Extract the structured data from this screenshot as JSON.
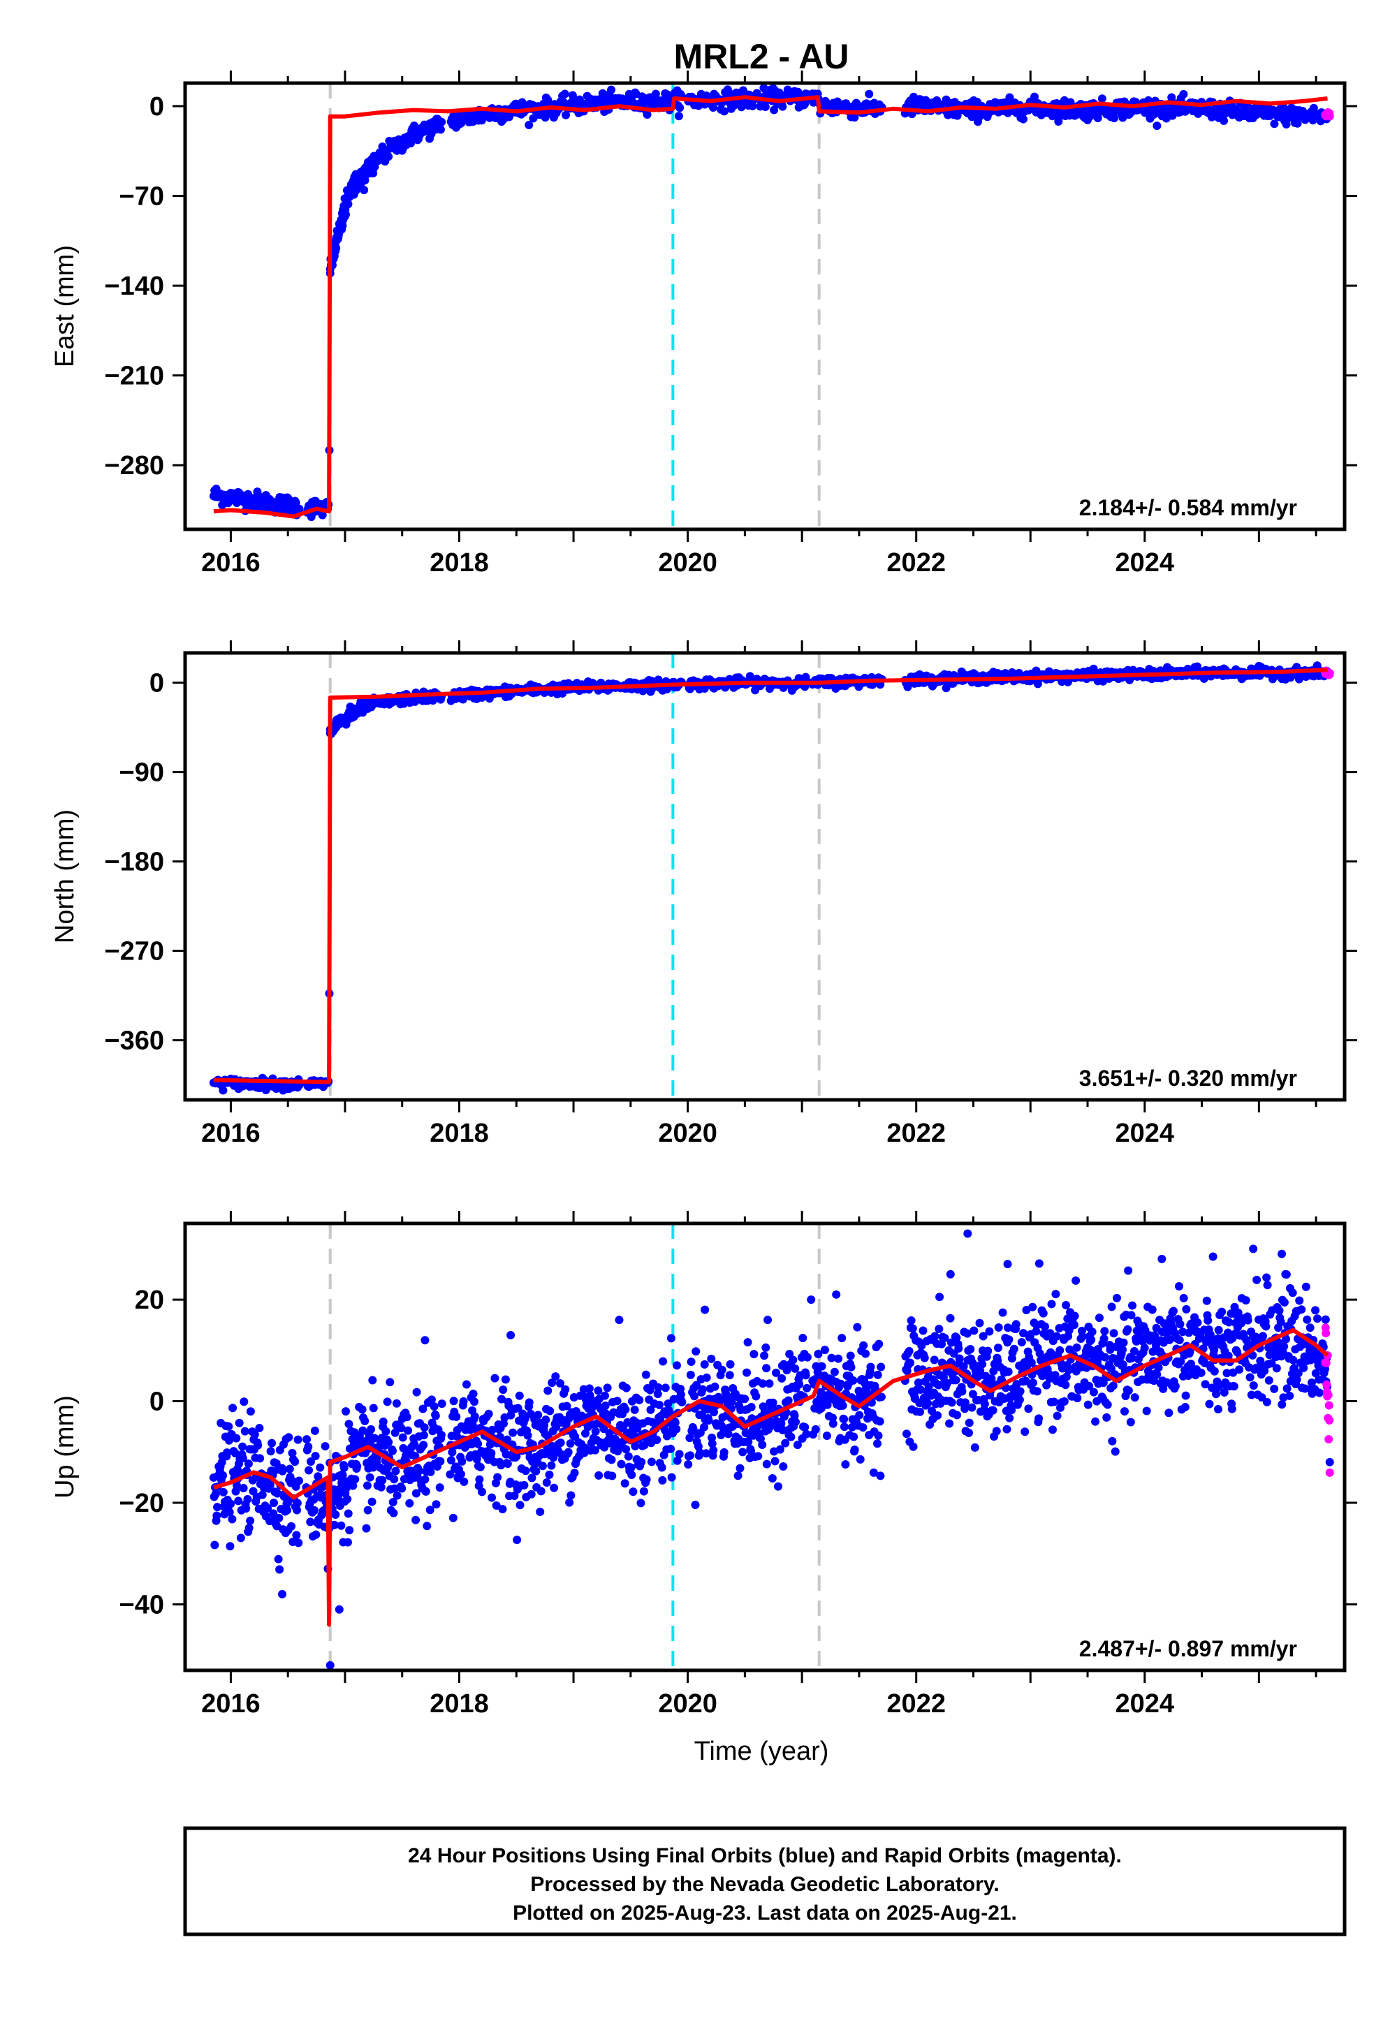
{
  "title": "MRL2 - AU",
  "xlabel": "Time (year)",
  "footer": {
    "line1": "24 Hour Positions Using Final Orbits (blue) and Rapid Orbits (magenta).",
    "line2": "Processed by the Nevada Geodetic Laboratory.",
    "line3": "Plotted on 2025-Aug-23. Last data on 2025-Aug-21."
  },
  "colors": {
    "final": "#0000ff",
    "rapid": "#ff00ff",
    "model": "#ff0000",
    "equipment_change": "#c8c8c8",
    "earthquake": "#00e5ee"
  },
  "chart_data": [
    {
      "type": "scatter",
      "panel": "East",
      "ylabel": "East (mm)",
      "rate_label": "2.184+/- 0.584 mm/yr",
      "xlim": [
        2015.6,
        2025.75
      ],
      "ylim": [
        -330,
        18
      ],
      "x_ticks": [
        2016,
        2018,
        2020,
        2022,
        2024
      ],
      "y_ticks": [
        0,
        -70,
        -140,
        -210,
        -280
      ],
      "grid": false,
      "vertical_lines": [
        {
          "x": 2016.87,
          "kind": "equipment_change"
        },
        {
          "x": 2019.87,
          "kind": "earthquake"
        },
        {
          "x": 2021.15,
          "kind": "equipment_change"
        }
      ],
      "final_trend": [
        [
          2015.85,
          -303
        ],
        [
          2016.1,
          -306
        ],
        [
          2016.4,
          -310
        ],
        [
          2016.7,
          -313
        ],
        [
          2016.86,
          -314
        ],
        [
          2016.87,
          -128
        ],
        [
          2016.95,
          -95
        ],
        [
          2017.05,
          -65
        ],
        [
          2017.3,
          -40
        ],
        [
          2017.6,
          -22
        ],
        [
          2017.9,
          -12
        ],
        [
          2018.3,
          -5
        ],
        [
          2018.8,
          -1
        ],
        [
          2019.3,
          3
        ],
        [
          2019.87,
          4
        ],
        [
          2020.2,
          5
        ],
        [
          2020.7,
          6
        ],
        [
          2021.14,
          6
        ],
        [
          2021.15,
          0
        ],
        [
          2021.6,
          -2
        ],
        [
          2022.0,
          0
        ],
        [
          2022.5,
          -3
        ],
        [
          2023.0,
          -1
        ],
        [
          2023.5,
          -3
        ],
        [
          2024.0,
          -1
        ],
        [
          2024.5,
          -2
        ],
        [
          2025.0,
          -6
        ],
        [
          2025.6,
          -8
        ]
      ],
      "final_scatter": 3.5,
      "rapid_segment": [
        [
          2025.58,
          -8
        ],
        [
          2025.62,
          -6
        ]
      ],
      "model": [
        [
          2015.85,
          -316
        ],
        [
          2016.0,
          -315
        ],
        [
          2016.3,
          -317
        ],
        [
          2016.55,
          -320
        ],
        [
          2016.75,
          -314
        ],
        [
          2016.86,
          -316
        ],
        [
          2016.87,
          -8
        ],
        [
          2017.0,
          -8
        ],
        [
          2017.3,
          -5
        ],
        [
          2017.6,
          -3
        ],
        [
          2017.9,
          -4
        ],
        [
          2018.2,
          -2
        ],
        [
          2018.5,
          -4
        ],
        [
          2018.8,
          -1
        ],
        [
          2019.1,
          -3
        ],
        [
          2019.4,
          0
        ],
        [
          2019.7,
          -3
        ],
        [
          2019.87,
          -2
        ],
        [
          2019.88,
          6
        ],
        [
          2020.2,
          4
        ],
        [
          2020.5,
          7
        ],
        [
          2020.8,
          4
        ],
        [
          2021.14,
          7
        ],
        [
          2021.15,
          -4
        ],
        [
          2021.5,
          -5
        ],
        [
          2021.8,
          -2
        ],
        [
          2022.1,
          -4
        ],
        [
          2022.4,
          -1
        ],
        [
          2022.7,
          -2
        ],
        [
          2023.0,
          1
        ],
        [
          2023.3,
          -1
        ],
        [
          2023.6,
          2
        ],
        [
          2023.9,
          0
        ],
        [
          2024.2,
          3
        ],
        [
          2024.5,
          1
        ],
        [
          2024.8,
          4
        ],
        [
          2025.1,
          2
        ],
        [
          2025.4,
          4
        ],
        [
          2025.6,
          6
        ]
      ]
    },
    {
      "type": "scatter",
      "panel": "North",
      "ylabel": "North (mm)",
      "rate_label": "3.651+/- 0.320 mm/yr",
      "xlim": [
        2015.6,
        2025.75
      ],
      "ylim": [
        -420,
        30
      ],
      "x_ticks": [
        2016,
        2018,
        2020,
        2022,
        2024
      ],
      "y_ticks": [
        0,
        -90,
        -180,
        -270,
        -360
      ],
      "grid": false,
      "vertical_lines": [
        {
          "x": 2016.87,
          "kind": "equipment_change"
        },
        {
          "x": 2019.87,
          "kind": "earthquake"
        },
        {
          "x": 2021.15,
          "kind": "equipment_change"
        }
      ],
      "final_trend": [
        [
          2015.85,
          -403
        ],
        [
          2016.3,
          -404
        ],
        [
          2016.86,
          -404
        ],
        [
          2016.87,
          -50
        ],
        [
          2016.95,
          -40
        ],
        [
          2017.2,
          -22
        ],
        [
          2017.6,
          -15
        ],
        [
          2018.0,
          -13
        ],
        [
          2018.5,
          -8
        ],
        [
          2019.0,
          -5
        ],
        [
          2019.5,
          -3
        ],
        [
          2019.87,
          -2
        ],
        [
          2020.5,
          0
        ],
        [
          2021.15,
          0
        ],
        [
          2021.6,
          2
        ],
        [
          2022.0,
          3
        ],
        [
          2022.5,
          5
        ],
        [
          2023.0,
          6
        ],
        [
          2023.5,
          7
        ],
        [
          2024.0,
          8
        ],
        [
          2024.5,
          10
        ],
        [
          2025.0,
          10
        ],
        [
          2025.6,
          10
        ]
      ],
      "final_scatter": 2.5,
      "rapid_segment": [
        [
          2025.58,
          10
        ],
        [
          2025.62,
          9
        ]
      ],
      "model": [
        [
          2015.85,
          -400
        ],
        [
          2016.3,
          -401
        ],
        [
          2016.86,
          -402
        ],
        [
          2016.87,
          -15
        ],
        [
          2017.3,
          -14
        ],
        [
          2017.7,
          -12
        ],
        [
          2018.2,
          -10
        ],
        [
          2018.7,
          -6
        ],
        [
          2019.2,
          -5
        ],
        [
          2019.87,
          -2
        ],
        [
          2020.5,
          0
        ],
        [
          2021.15,
          0
        ],
        [
          2021.6,
          2
        ],
        [
          2022.2,
          3
        ],
        [
          2022.8,
          4
        ],
        [
          2023.4,
          6
        ],
        [
          2024.0,
          8
        ],
        [
          2024.6,
          10
        ],
        [
          2025.2,
          11
        ],
        [
          2025.6,
          13
        ]
      ]
    },
    {
      "type": "scatter",
      "panel": "Up",
      "ylabel": "Up (mm)",
      "rate_label": "2.487+/- 0.897 mm/yr",
      "xlim": [
        2015.6,
        2025.75
      ],
      "ylim": [
        -53,
        35
      ],
      "x_ticks": [
        2016,
        2018,
        2020,
        2022,
        2024
      ],
      "y_ticks": [
        20,
        0,
        -20,
        -40
      ],
      "grid": false,
      "vertical_lines": [
        {
          "x": 2016.87,
          "kind": "equipment_change"
        },
        {
          "x": 2019.87,
          "kind": "earthquake"
        },
        {
          "x": 2021.15,
          "kind": "equipment_change"
        }
      ],
      "final_trend": [
        [
          2015.85,
          -16
        ],
        [
          2016.2,
          -14
        ],
        [
          2016.55,
          -18
        ],
        [
          2016.86,
          -17
        ],
        [
          2016.87,
          -22
        ],
        [
          2017.0,
          -14
        ],
        [
          2017.3,
          -11
        ],
        [
          2017.6,
          -13
        ],
        [
          2017.9,
          -9
        ],
        [
          2018.3,
          -7
        ],
        [
          2018.6,
          -10
        ],
        [
          2018.9,
          -6
        ],
        [
          2019.2,
          -4
        ],
        [
          2019.5,
          -7
        ],
        [
          2019.87,
          -3
        ],
        [
          2020.2,
          -1
        ],
        [
          2020.6,
          -4
        ],
        [
          2021.15,
          2
        ],
        [
          2021.5,
          0
        ],
        [
          2021.9,
          4
        ],
        [
          2022.3,
          6
        ],
        [
          2022.7,
          3
        ],
        [
          2023.0,
          7
        ],
        [
          2023.3,
          9
        ],
        [
          2023.7,
          6
        ],
        [
          2024.0,
          9
        ],
        [
          2024.3,
          11
        ],
        [
          2024.7,
          8
        ],
        [
          2025.0,
          11
        ],
        [
          2025.3,
          12
        ],
        [
          2025.6,
          8
        ]
      ],
      "final_scatter": 5.5,
      "rapid_segment": [
        [
          2025.58,
          10
        ],
        [
          2025.62,
          -8
        ]
      ],
      "model": [
        [
          2015.85,
          -17
        ],
        [
          2016.0,
          -16
        ],
        [
          2016.2,
          -14
        ],
        [
          2016.35,
          -15
        ],
        [
          2016.55,
          -19
        ],
        [
          2016.7,
          -17
        ],
        [
          2016.85,
          -15
        ],
        [
          2016.86,
          -44
        ],
        [
          2016.87,
          -12
        ],
        [
          2017.0,
          -11
        ],
        [
          2017.2,
          -9
        ],
        [
          2017.5,
          -13
        ],
        [
          2017.7,
          -11
        ],
        [
          2018.0,
          -8
        ],
        [
          2018.2,
          -6
        ],
        [
          2018.5,
          -10
        ],
        [
          2018.7,
          -9
        ],
        [
          2019.0,
          -5
        ],
        [
          2019.2,
          -3
        ],
        [
          2019.5,
          -8
        ],
        [
          2019.7,
          -6
        ],
        [
          2019.87,
          -3
        ],
        [
          2020.1,
          0
        ],
        [
          2020.3,
          -1
        ],
        [
          2020.5,
          -5
        ],
        [
          2020.8,
          -2
        ],
        [
          2021.1,
          1
        ],
        [
          2021.15,
          4
        ],
        [
          2021.35,
          1
        ],
        [
          2021.5,
          -1
        ],
        [
          2021.8,
          4
        ],
        [
          2022.1,
          6
        ],
        [
          2022.3,
          7
        ],
        [
          2022.5,
          4
        ],
        [
          2022.65,
          2
        ],
        [
          2022.9,
          5
        ],
        [
          2023.1,
          7
        ],
        [
          2023.35,
          9
        ],
        [
          2023.55,
          7
        ],
        [
          2023.75,
          4
        ],
        [
          2024.0,
          7
        ],
        [
          2024.2,
          9
        ],
        [
          2024.4,
          11
        ],
        [
          2024.6,
          8
        ],
        [
          2024.8,
          8
        ],
        [
          2025.0,
          11
        ],
        [
          2025.3,
          14
        ],
        [
          2025.5,
          11
        ],
        [
          2025.6,
          9
        ]
      ],
      "outliers": [
        [
          2016.87,
          -52
        ],
        [
          2016.85,
          -33
        ],
        [
          2016.95,
          -41
        ],
        [
          2016.45,
          -38
        ],
        [
          2022.45,
          33
        ],
        [
          2022.8,
          27
        ],
        [
          2024.95,
          30
        ],
        [
          2025.2,
          29
        ],
        [
          2021.08,
          20
        ],
        [
          2020.15,
          18
        ],
        [
          2021.3,
          21
        ],
        [
          2025.62,
          -12
        ],
        [
          2019.4,
          16
        ],
        [
          2018.45,
          13
        ],
        [
          2017.7,
          12
        ],
        [
          2020.7,
          16
        ],
        [
          2022.3,
          25
        ],
        [
          2024.15,
          28
        ]
      ]
    }
  ]
}
